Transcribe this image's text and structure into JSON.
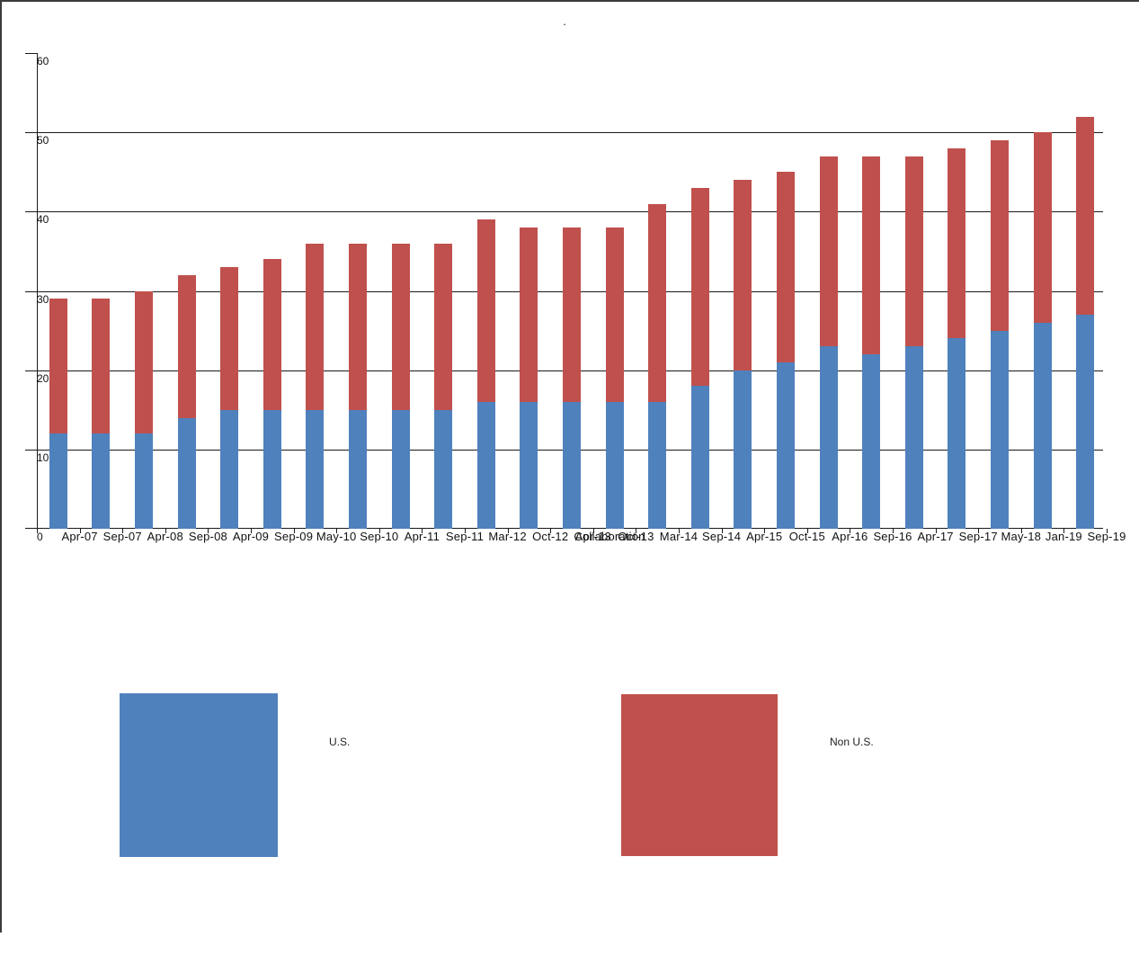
{
  "chart_data": {
    "type": "bar",
    "stacked": true,
    "title": ".",
    "categories": [
      "Apr-07",
      "Sep-07",
      "Apr-08",
      "Sep-08",
      "Apr-09",
      "Sep-09",
      "May-10",
      "Sep-10",
      "Apr-11",
      "Sep-11",
      "Mar-12",
      "Oct-12",
      "Apr-13",
      "Oct-13",
      "Mar-14",
      "Sep-14",
      "Apr-15",
      "Oct-15",
      "Apr-16",
      "Sep-16",
      "Apr-17",
      "Sep-17",
      "May-18",
      "Jan-19",
      "Sep-19"
    ],
    "series": [
      {
        "name": "U.S.",
        "color": "#4f81bd",
        "values": [
          12,
          12,
          12,
          14,
          15,
          15,
          15,
          15,
          15,
          15,
          16,
          16,
          16,
          16,
          16,
          18,
          20,
          21,
          23,
          22,
          23,
          24,
          25,
          26,
          27
        ]
      },
      {
        "name": "Non U.S.",
        "color": "#c0504d",
        "values": [
          17,
          17,
          18,
          18,
          18,
          19,
          21,
          21,
          21,
          21,
          23,
          22,
          22,
          22,
          25,
          25,
          24,
          24,
          24,
          25,
          24,
          24,
          24,
          24,
          25
        ]
      }
    ],
    "totals": [
      29,
      29,
      30,
      32,
      33,
      34,
      36,
      36,
      36,
      36,
      39,
      38,
      38,
      38,
      41,
      43,
      44,
      45,
      47,
      47,
      47,
      48,
      49,
      50,
      52
    ],
    "xlabel": "",
    "ylabel": "",
    "ylim": [
      0,
      60
    ],
    "yticks": [
      0,
      10,
      20,
      30,
      40,
      50,
      60
    ],
    "gridlines_at": [
      10,
      20,
      30,
      40,
      50
    ],
    "grid": true,
    "legend_position": "bottom",
    "x_axis_overlay_text": "Collaboration"
  },
  "legend": {
    "items": [
      {
        "label": "U.S.",
        "color": "#4f81bd"
      },
      {
        "label": "Non U.S.",
        "color": "#c0504d"
      }
    ]
  }
}
